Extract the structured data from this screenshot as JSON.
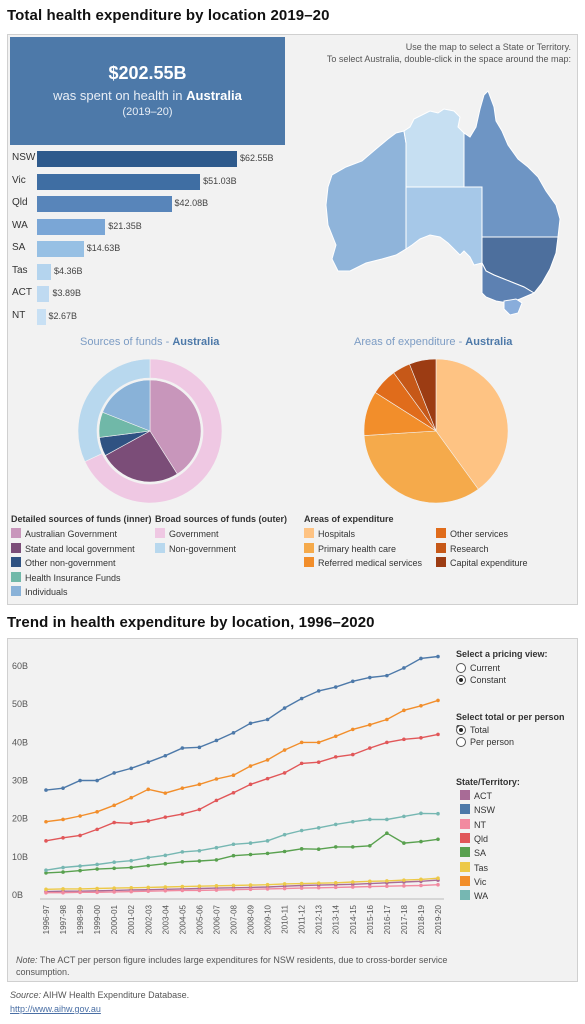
{
  "section1": {
    "title": "Total health expenditure by location 2019–20",
    "kpi": {
      "amount": "$202.55B",
      "text": "was spent on health in",
      "location": "Australia",
      "year": "(2019–20)"
    },
    "map_instructions": [
      "Use the map to select a State or Territory.",
      "To select Australia, double-click in the space around the map:"
    ],
    "state_bars": [
      {
        "label": "NSW",
        "value": 62.55,
        "display": "$62.55B"
      },
      {
        "label": "Vic",
        "value": 51.03,
        "display": "$51.03B"
      },
      {
        "label": "Qld",
        "value": 42.08,
        "display": "$42.08B"
      },
      {
        "label": "WA",
        "value": 21.35,
        "display": "$21.35B"
      },
      {
        "label": "SA",
        "value": 14.63,
        "display": "$14.63B"
      },
      {
        "label": "Tas",
        "value": 4.36,
        "display": "$4.36B"
      },
      {
        "label": "ACT",
        "value": 3.89,
        "display": "$3.89B"
      },
      {
        "label": "NT",
        "value": 2.67,
        "display": "$2.67B"
      }
    ],
    "sources_pie": {
      "title_prefix": "Sources of funds - ",
      "title_location": "Australia",
      "inner": [
        {
          "name": "Australian Government",
          "value": 41,
          "color": "#c896bb"
        },
        {
          "name": "State and local government",
          "value": 26,
          "color": "#7b4d78"
        },
        {
          "name": "Other non-government",
          "value": 6,
          "color": "#2f5282"
        },
        {
          "name": "Health Insurance Funds",
          "value": 8,
          "color": "#70b8a8"
        },
        {
          "name": "Individuals",
          "value": 19,
          "color": "#89b2d8"
        }
      ],
      "outer": [
        {
          "name": "Government",
          "value": 68,
          "color": "#efc8e3"
        },
        {
          "name": "Non-government",
          "value": 32,
          "color": "#b8d8ee"
        }
      ]
    },
    "areas_pie": {
      "title_prefix": "Areas of expenditure - ",
      "title_location": "Australia",
      "slices": [
        {
          "name": "Hospitals",
          "value": 40,
          "color": "#fec383"
        },
        {
          "name": "Primary health care",
          "value": 34,
          "color": "#f5aa4b"
        },
        {
          "name": "Referred medical services",
          "value": 10,
          "color": "#f28e2b"
        },
        {
          "name": "Other services",
          "value": 6,
          "color": "#e06c1b"
        },
        {
          "name": "Research",
          "value": 4,
          "color": "#c65818"
        },
        {
          "name": "Capital expenditure",
          "value": 6,
          "color": "#9c3c13"
        }
      ]
    },
    "legend_headers": {
      "inner": "Detailed sources of funds (inner)",
      "outer": "Broad sources of funds (outer)",
      "areas": "Areas of expenditure"
    }
  },
  "section2": {
    "title": "Trend in health expenditure by location, 1996–2020",
    "pricing_label": "Select a pricing view:",
    "pricing_options": [
      {
        "label": "Current",
        "selected": false
      },
      {
        "label": "Constant",
        "selected": true
      }
    ],
    "total_label": "Select total or per person e..",
    "total_options": [
      {
        "label": "Total",
        "selected": true
      },
      {
        "label": "Per person",
        "selected": false
      }
    ],
    "state_legend_label": "State/Territory:",
    "note_label": "Note:",
    "note_text": " The ACT per person figure includes large expenditures for NSW residents, due to cross-border service consumption."
  },
  "source_label": "Source:",
  "source_text": " AIHW Health Expenditure Database.",
  "source_url": "http://www.aihw.gov.au",
  "chart_data": [
    {
      "type": "bar",
      "categories": [
        "NSW",
        "Vic",
        "Qld",
        "WA",
        "SA",
        "Tas",
        "ACT",
        "NT"
      ],
      "values": [
        62.55,
        51.03,
        42.08,
        21.35,
        14.63,
        4.36,
        3.89,
        2.67
      ],
      "data_labels": [
        "$62.55B",
        "$51.03B",
        "$42.08B",
        "$21.35B",
        "$14.63B",
        "$4.36B",
        "$3.89B",
        "$2.67B"
      ],
      "orientation": "horizontal"
    },
    {
      "type": "pie",
      "title": "Sources of funds - Australia",
      "series": [
        {
          "name": "Detailed sources of funds (inner)",
          "labels": [
            "Australian Government",
            "State and local government",
            "Other non-government",
            "Health Insurance Funds",
            "Individuals"
          ],
          "values": [
            41,
            26,
            6,
            8,
            19
          ]
        },
        {
          "name": "Broad sources of funds (outer)",
          "labels": [
            "Government",
            "Non-government"
          ],
          "values": [
            68,
            32
          ]
        }
      ]
    },
    {
      "type": "pie",
      "title": "Areas of expenditure - Australia",
      "categories": [
        "Hospitals",
        "Primary health care",
        "Referred medical services",
        "Other services",
        "Research",
        "Capital expenditure"
      ],
      "values": [
        40,
        34,
        10,
        6,
        4,
        6
      ]
    },
    {
      "type": "line",
      "x": [
        "1996-97",
        "1997-98",
        "1998-99",
        "1999-00",
        "2000-01",
        "2001-02",
        "2002-03",
        "2003-04",
        "2004-05",
        "2005-06",
        "2006-07",
        "2007-08",
        "2008-09",
        "2009-10",
        "2010-11",
        "2011-12",
        "2012-13",
        "2013-14",
        "2014-15",
        "2015-16",
        "2016-17",
        "2017-18",
        "2018-19",
        "2019-20"
      ],
      "y_ticks": [
        0,
        10,
        20,
        30,
        40,
        50,
        60
      ],
      "y_tick_labels": [
        "0B",
        "10B",
        "20B",
        "30B",
        "40B",
        "50B",
        "60B"
      ],
      "ylim": [
        0,
        65
      ],
      "grid": false,
      "legend": "right",
      "series": [
        {
          "name": "ACT",
          "color": "#a86b96",
          "values": [
            0.9,
            1.0,
            1.0,
            1.1,
            1.2,
            1.3,
            1.4,
            1.5,
            1.6,
            1.7,
            1.8,
            1.9,
            2.0,
            2.1,
            2.3,
            2.5,
            2.6,
            2.7,
            2.8,
            3.0,
            3.2,
            3.4,
            3.6,
            3.9
          ]
        },
        {
          "name": "NSW",
          "color": "#4d79a9",
          "values": [
            27.5,
            28.0,
            30.0,
            30.0,
            32.0,
            33.2,
            34.8,
            36.5,
            38.5,
            38.7,
            40.5,
            42.5,
            45.0,
            46.0,
            49.0,
            51.5,
            53.5,
            54.5,
            56.0,
            57.0,
            57.5,
            59.5,
            62.0,
            62.5
          ]
        },
        {
          "name": "NT",
          "color": "#f28aa0",
          "values": [
            0.6,
            0.6,
            0.7,
            0.7,
            0.8,
            0.9,
            1.0,
            1.1,
            1.2,
            1.2,
            1.3,
            1.4,
            1.5,
            1.6,
            1.7,
            1.8,
            1.9,
            2.0,
            2.1,
            2.2,
            2.3,
            2.4,
            2.5,
            2.7
          ]
        },
        {
          "name": "Qld",
          "color": "#e15759",
          "values": [
            14.2,
            15.0,
            15.6,
            17.2,
            19.0,
            18.8,
            19.4,
            20.4,
            21.2,
            22.4,
            24.8,
            26.8,
            29.0,
            30.5,
            32.0,
            34.5,
            34.8,
            36.2,
            36.8,
            38.5,
            40.0,
            40.8,
            41.2,
            42.1
          ]
        },
        {
          "name": "SA",
          "color": "#59a14f",
          "values": [
            5.8,
            6.0,
            6.4,
            6.8,
            7.0,
            7.2,
            7.7,
            8.2,
            8.7,
            8.9,
            9.2,
            10.3,
            10.6,
            10.9,
            11.4,
            12.1,
            12.0,
            12.6,
            12.6,
            12.9,
            16.2,
            13.6,
            14.0,
            14.6
          ]
        },
        {
          "name": "Tas",
          "color": "#edc948",
          "values": [
            1.5,
            1.6,
            1.6,
            1.7,
            1.8,
            1.9,
            2.0,
            2.1,
            2.2,
            2.3,
            2.4,
            2.5,
            2.6,
            2.7,
            2.9,
            3.0,
            3.1,
            3.2,
            3.4,
            3.6,
            3.7,
            3.9,
            4.1,
            4.4
          ]
        },
        {
          "name": "Vic",
          "color": "#f28e2b",
          "values": [
            19.2,
            19.8,
            20.7,
            21.8,
            23.5,
            25.5,
            27.7,
            26.7,
            28.0,
            29.0,
            30.4,
            31.4,
            33.8,
            35.4,
            38.0,
            40.0,
            40.0,
            41.6,
            43.4,
            44.6,
            46.0,
            48.4,
            49.6,
            51.0
          ]
        },
        {
          "name": "WA",
          "color": "#76b7b2",
          "values": [
            6.5,
            7.2,
            7.6,
            8.0,
            8.6,
            9.0,
            9.8,
            10.4,
            11.3,
            11.6,
            12.4,
            13.3,
            13.6,
            14.2,
            15.8,
            16.9,
            17.6,
            18.5,
            19.2,
            19.8,
            19.8,
            20.6,
            21.4,
            21.3
          ]
        }
      ]
    }
  ]
}
